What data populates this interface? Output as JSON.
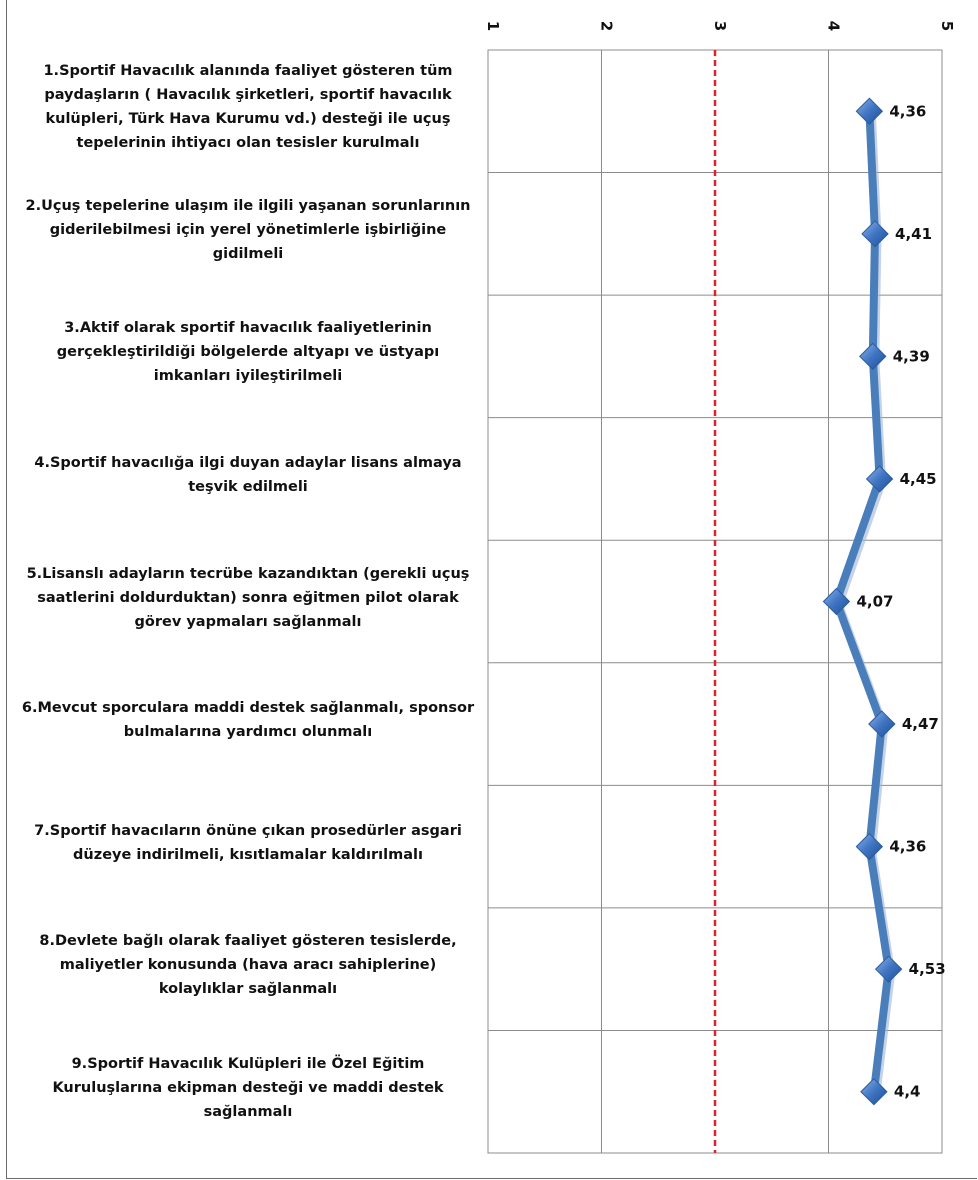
{
  "chart_data": {
    "type": "line",
    "orientation": "horizontal",
    "categories": [
      "1.Sportif Havacılık alanında faaliyet gösteren tüm paydaşların ( Havacılık şirketleri, sportif havacılık kulüpleri, Türk Hava Kurumu vd.) desteği ile uçuş tepelerinin ihtiyacı olan tesisler kurulmalı",
      "2.Uçuş tepelerine ulaşım ile ilgili yaşanan sorunlarının giderilebilmesi için yerel yönetimlerle işbirliğine gidilmeli",
      "3.Aktif olarak sportif havacılık faaliyetlerinin gerçekleştirildiği bölgelerde altyapı ve üstyapı imkanları iyileştirilmeli",
      "4.Sportif havacılığa ilgi duyan adaylar lisans almaya teşvik edilmeli",
      "5.Lisanslı adayların tecrübe kazandıktan (gerekli uçuş saatlerini doldurduktan) sonra eğitmen pilot olarak görev yapmaları sağlanmalı",
      "6.Mevcut sporculara maddi destek sağlanmalı, sponsor bulmalarına yardımcı olunmalı",
      "7.Sportif havacıların önüne çıkan prosedürler asgari düzeye indirilmeli, kısıtlamalar kaldırılmalı",
      "8.Devlete bağlı olarak faaliyet gösteren tesislerde, maliyetler konusunda (hava aracı sahiplerine) kolaylıklar sağlanmalı",
      "9.Sportif Havacılık Kulüpleri ile Özel Eğitim Kuruluşlarına ekipman desteği ve maddi destek sağlanmalı"
    ],
    "values": [
      4.36,
      4.41,
      4.39,
      4.45,
      4.07,
      4.47,
      4.36,
      4.53,
      4.4
    ],
    "value_labels": [
      "4,36",
      "4,41",
      "4,39",
      "4,45",
      "4,07",
      "4,47",
      "4,36",
      "4,53",
      "4,4"
    ],
    "ticks": [
      "1",
      "2",
      "3",
      "4",
      "5"
    ],
    "xlim": [
      1,
      5
    ],
    "reference_line": 3,
    "grid": true,
    "colors": {
      "line": "#4a7ebb",
      "marker": "#3f74c2",
      "reference": "#e0202a",
      "grid": "#8c8c8c"
    }
  }
}
